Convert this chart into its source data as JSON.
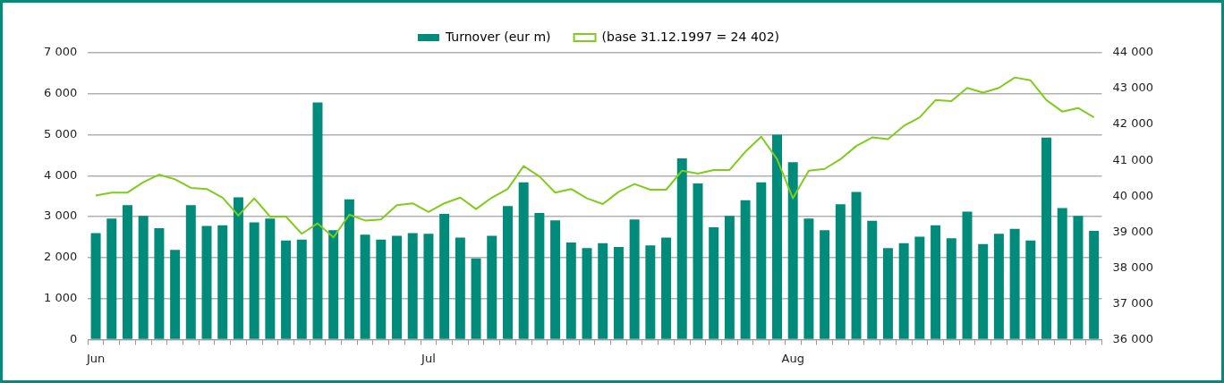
{
  "chart_data": {
    "type": "bar",
    "categories": [
      "Jun",
      null,
      null,
      null,
      null,
      null,
      null,
      null,
      null,
      null,
      null,
      null,
      null,
      null,
      null,
      null,
      null,
      null,
      null,
      null,
      null,
      "Jul",
      null,
      null,
      null,
      null,
      null,
      null,
      null,
      null,
      null,
      null,
      null,
      null,
      null,
      null,
      null,
      null,
      null,
      null,
      null,
      null,
      null,
      null,
      "Aug",
      null,
      null,
      null,
      null,
      null,
      null,
      null,
      null,
      null,
      null,
      null,
      null,
      null,
      null,
      null,
      null,
      null,
      null,
      null
    ],
    "series": [
      {
        "name": "Turnover (eur m)",
        "color": "#008b7a",
        "values": [
          2600,
          2950,
          3280,
          3020,
          2720,
          2190,
          3280,
          2770,
          2790,
          3470,
          2860,
          2950,
          2420,
          2440,
          5790,
          2670,
          3420,
          2560,
          2440,
          2530,
          2600,
          2580,
          3070,
          2490,
          1980,
          2530,
          3260,
          3840,
          3090,
          2910,
          2370,
          2230,
          2350,
          2260,
          2930,
          2300,
          2490,
          4420,
          3810,
          2740,
          3020,
          3400,
          3840,
          5000,
          4330,
          2950,
          2670,
          3300,
          3600,
          2900,
          2230,
          2350,
          2510,
          2790,
          2470,
          3120,
          2330,
          2580,
          2700,
          2420,
          4930,
          3210,
          3020,
          2650
        ]
      },
      {
        "name": "(base 31.12.1997 = 24 402)",
        "type": "line",
        "axis": "y2",
        "color": "#7fcc1c",
        "values": [
          40020,
          40100,
          40100,
          40390,
          40600,
          40470,
          40230,
          40200,
          39960,
          39460,
          39940,
          39430,
          39430,
          38950,
          39240,
          38850,
          39480,
          39320,
          39350,
          39750,
          39800,
          39560,
          39800,
          39960,
          39640,
          39960,
          40200,
          40840,
          40550,
          40100,
          40200,
          39940,
          39780,
          40120,
          40340,
          40180,
          40180,
          40710,
          40630,
          40730,
          40730,
          41240,
          41660,
          41030,
          39940,
          40710,
          40760,
          41030,
          41400,
          41640,
          41590,
          41960,
          42200,
          42680,
          42650,
          43020,
          42890,
          43020,
          43310,
          43230,
          42680,
          42360,
          42460,
          42200
        ]
      }
    ],
    "ylim": [
      0,
      7000
    ],
    "yticks": [
      0,
      {
        "value": 1000,
        "label": "1 000"
      },
      {
        "value": 2000,
        "label": "2 000"
      },
      {
        "value": 3000,
        "label": "3 000"
      },
      {
        "value": 4000,
        "label": "4 000"
      },
      {
        "value": 5000,
        "label": "5 000"
      },
      {
        "value": 6000,
        "label": "6 000"
      },
      {
        "value": 7000,
        "label": "7 000"
      }
    ],
    "y2lim": [
      36000,
      44000
    ],
    "y2ticks": [
      {
        "value": 36000,
        "label": "36 000"
      },
      {
        "value": 37000,
        "label": "37 000"
      },
      {
        "value": 38000,
        "label": "38 000"
      },
      {
        "value": 39000,
        "label": "39 000"
      },
      {
        "value": 40000,
        "label": "40 000"
      },
      {
        "value": 41000,
        "label": "41 000"
      },
      {
        "value": 42000,
        "label": "42 000"
      },
      {
        "value": 43000,
        "label": "43 000"
      },
      {
        "value": 44000,
        "label": "44 000"
      }
    ],
    "grid": "y",
    "legend": "top",
    "marker": "none",
    "line_style": "solid"
  }
}
